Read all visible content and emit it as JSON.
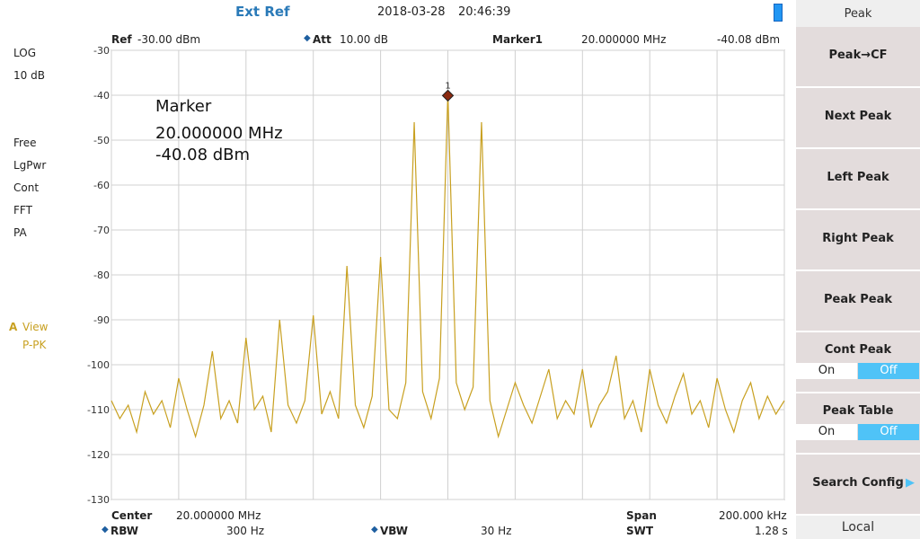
{
  "header": {
    "ref_source": "Ext Ref",
    "date": "2018-03-28",
    "time": "20:46:39"
  },
  "left_panel": {
    "scale": [
      "LOG",
      "10 dB"
    ],
    "modes": [
      "Free",
      "LgPwr",
      "Cont",
      "FFT",
      "PA"
    ],
    "trace": "A",
    "trace_mode": "View",
    "detector": "P-PK"
  },
  "top_info": {
    "ref_label": "Ref",
    "ref_value": "-30.00 dBm",
    "att_label": "Att",
    "att_value": "10.00 dB",
    "marker_label": "Marker1",
    "marker_freq": "20.000000 MHz",
    "marker_level": "-40.08 dBm"
  },
  "annotation": {
    "title": "Marker",
    "freq": "20.000000 MHz",
    "level": "-40.08 dBm"
  },
  "bottom_info": {
    "center_label": "Center",
    "center_value": "20.000000 MHz",
    "span_label": "Span",
    "span_value": "200.000 kHz",
    "rbw_label": "RBW",
    "rbw_value": "300 Hz",
    "vbw_label": "VBW",
    "vbw_value": "30 Hz",
    "swt_label": "SWT",
    "swt_value": "1.28 s"
  },
  "menu": {
    "title": "Peak",
    "items": [
      {
        "label": "Peak→CF"
      },
      {
        "label": "Next Peak"
      },
      {
        "label": "Left Peak"
      },
      {
        "label": "Right Peak"
      },
      {
        "label": "Peak Peak"
      },
      {
        "label": "Cont Peak",
        "options": [
          "On",
          "Off"
        ],
        "selected": 1
      },
      {
        "label": "Peak Table",
        "options": [
          "On",
          "Off"
        ],
        "selected": 1
      },
      {
        "label": "Search Config"
      }
    ],
    "footer": "Local"
  },
  "chart_data": {
    "type": "line",
    "x": [
      19.9,
      19.9025,
      19.905,
      19.9075,
      19.91,
      19.9125,
      19.915,
      19.9175,
      19.92,
      19.9225,
      19.925,
      19.9275,
      19.93,
      19.9325,
      19.935,
      19.9375,
      19.94,
      19.9425,
      19.945,
      19.9475,
      19.95,
      19.9525,
      19.955,
      19.9575,
      19.96,
      19.9625,
      19.965,
      19.9675,
      19.97,
      19.9725,
      19.975,
      19.9775,
      19.98,
      19.9825,
      19.985,
      19.9875,
      19.99,
      19.9925,
      19.995,
      19.9975,
      20.0,
      20.0025,
      20.005,
      20.0075,
      20.01,
      20.0125,
      20.015,
      20.0175,
      20.02,
      20.0225,
      20.025,
      20.0275,
      20.03,
      20.0325,
      20.035,
      20.0375,
      20.04,
      20.0425,
      20.045,
      20.0475,
      20.05,
      20.0525,
      20.055,
      20.0575,
      20.06,
      20.0625,
      20.065,
      20.0675,
      20.07,
      20.0725,
      20.075,
      20.0775,
      20.08,
      20.0825,
      20.085,
      20.0875,
      20.09,
      20.0925,
      20.095,
      20.0975,
      20.1
    ],
    "series": [
      {
        "color": "#c8a020",
        "values": [
          -108,
          -112,
          -109,
          -115,
          -106,
          -111,
          -108,
          -114,
          -103,
          -110,
          -116,
          -109,
          -97,
          -112,
          -108,
          -113,
          -94,
          -110,
          -107,
          -115,
          -90,
          -109,
          -113,
          -108,
          -89,
          -111,
          -106,
          -112,
          -78,
          -109,
          -114,
          -107,
          -76,
          -110,
          -112,
          -104,
          -46,
          -106,
          -112,
          -103,
          -39.5,
          -104,
          -110,
          -105,
          -46,
          -108,
          -116,
          -110,
          -104,
          -109,
          -113,
          -107,
          -101,
          -112,
          -108,
          -111,
          -101,
          -114,
          -109,
          -106,
          -98,
          -112,
          -108,
          -115,
          -101,
          -109,
          -113,
          -107,
          -102,
          -111,
          -108,
          -114,
          -103,
          -110,
          -115,
          -108,
          -104,
          -112,
          -107,
          -111,
          -108
        ]
      }
    ],
    "xlim": [
      19.9,
      20.1
    ],
    "xticks": [
      19.9,
      19.92,
      19.94,
      19.96,
      19.98,
      20.0,
      20.02,
      20.04,
      20.06,
      20.08,
      20.1
    ],
    "ylim": [
      -130,
      -30
    ],
    "yticks": [
      -30,
      -40,
      -50,
      -60,
      -70,
      -80,
      -90,
      -100,
      -110,
      -120,
      -130
    ],
    "grid": true,
    "marker": {
      "label": "1",
      "x": 20.0,
      "y": -40.08,
      "color": "#8b2a10"
    }
  }
}
